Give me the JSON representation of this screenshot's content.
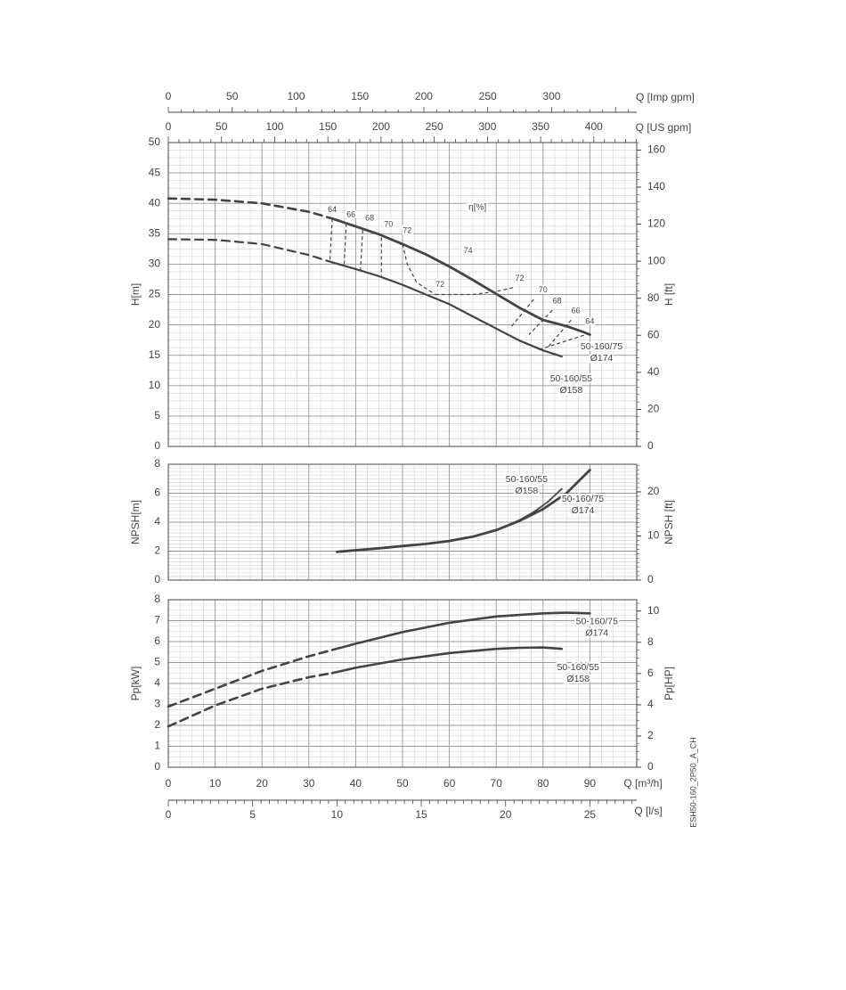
{
  "colors": {
    "curve": "#444444",
    "grid_major": "#999999",
    "grid_minor": "#d2d2d2",
    "text": "#444444"
  },
  "doc_code": "ESH50-160_2P50_A_CH",
  "chart_data": [
    {
      "type": "line",
      "id": "head",
      "ylabel": "H[m]",
      "ylabel_right": "H [ft]",
      "ylim": [
        0,
        50
      ],
      "y_ticks": [
        "0",
        "5",
        "10",
        "15",
        "20",
        "25",
        "30",
        "35",
        "40",
        "45",
        "50"
      ],
      "y2lim": [
        0,
        164.04
      ],
      "y2_ticks": [
        "0",
        "20",
        "40",
        "60",
        "80",
        "100",
        "120",
        "140",
        "160"
      ],
      "xlim": [
        0,
        100
      ],
      "top_axis_imp": {
        "label": "Q [Imp gpm]",
        "ticks": [
          "0",
          "50",
          "100",
          "150",
          "200",
          "250",
          "300"
        ]
      },
      "top_axis_us": {
        "label": "Q [US gpm]",
        "ticks": [
          "0",
          "50",
          "100",
          "150",
          "200",
          "250",
          "300",
          "350",
          "400"
        ]
      },
      "eta_label": "η[%]",
      "series": [
        {
          "name": "50-160/75\nØ174",
          "dashed": [
            [
              0,
              40.8
            ],
            [
              10,
              40.6
            ],
            [
              20,
              40
            ],
            [
              30,
              38.6
            ],
            [
              35,
              37.5
            ]
          ],
          "solid": [
            [
              35,
              37.5
            ],
            [
              40,
              36.2
            ],
            [
              45,
              34.9
            ],
            [
              50,
              33.3
            ],
            [
              55,
              31.6
            ],
            [
              60,
              29.6
            ],
            [
              65,
              27.4
            ],
            [
              70,
              25.1
            ],
            [
              75,
              22.8
            ],
            [
              80,
              20.8
            ],
            [
              85,
              19.8
            ],
            [
              88,
              19
            ],
            [
              90,
              18.4
            ]
          ]
        },
        {
          "name": "50-160/55\nØ158",
          "dashed": [
            [
              0,
              34.1
            ],
            [
              10,
              34
            ],
            [
              20,
              33.3
            ],
            [
              30,
              31.5
            ],
            [
              35,
              30.3
            ]
          ],
          "solid": [
            [
              35,
              30.3
            ],
            [
              40,
              29.2
            ],
            [
              45,
              28
            ],
            [
              50,
              26.6
            ],
            [
              55,
              25
            ],
            [
              60,
              23.4
            ],
            [
              65,
              21.4
            ],
            [
              70,
              19.4
            ],
            [
              75,
              17.4
            ],
            [
              80,
              15.8
            ],
            [
              84,
              14.8
            ]
          ]
        }
      ],
      "efficiency": [
        {
          "label": "64",
          "left": [
            [
              35,
              37.5
            ],
            [
              34.5,
              30.7
            ]
          ],
          "right": [
            [
              90,
              18.6
            ],
            [
              79,
              15.9
            ]
          ]
        },
        {
          "label": "66",
          "left": [
            [
              38,
              36.7
            ],
            [
              37.5,
              29.6
            ]
          ],
          "right": [
            [
              86,
              20.8
            ],
            [
              81,
              16.3
            ]
          ]
        },
        {
          "label": "68",
          "left": [
            [
              41.5,
              35.6
            ],
            [
              41,
              28.8
            ]
          ],
          "right": [
            [
              82,
              22.4
            ],
            [
              77,
              18.4
            ]
          ]
        },
        {
          "label": "70",
          "left": [
            [
              45.5,
              34.4
            ],
            [
              45.5,
              28.1
            ]
          ],
          "right": [
            [
              78,
              24.2
            ],
            [
              73,
              19.5
            ]
          ]
        },
        {
          "label": "72",
          "left": [
            [
              50,
              33.3
            ],
            [
              51,
              30
            ],
            [
              53,
              27
            ],
            [
              57,
              25
            ]
          ],
          "right": [
            [
              57,
              25
            ],
            [
              65,
              25
            ],
            [
              70,
              25.5
            ],
            [
              74,
              26.2
            ]
          ]
        },
        {
          "label": "74"
        }
      ]
    },
    {
      "type": "line",
      "id": "npsh",
      "ylabel": "NPSH[m]",
      "ylabel_right": "NPSH [ft]",
      "ylim": [
        0,
        8
      ],
      "y_ticks": [
        "0",
        "2",
        "4",
        "6",
        "8"
      ],
      "y2lim": [
        0,
        26.25
      ],
      "y2_ticks": [
        "0",
        "10",
        "20"
      ],
      "xlim": [
        0,
        100
      ],
      "series": [
        {
          "name": "50-160/75\nØ174",
          "points": [
            [
              36,
              1.95
            ],
            [
              45,
              2.2
            ],
            [
              50,
              2.35
            ],
            [
              55,
              2.5
            ],
            [
              60,
              2.7
            ],
            [
              65,
              3
            ],
            [
              70,
              3.45
            ],
            [
              75,
              4.1
            ],
            [
              80,
              4.9
            ],
            [
              85,
              6
            ],
            [
              90,
              7.6
            ]
          ]
        },
        {
          "name": "50-160/55\nØ158",
          "points": [
            [
              36,
              1.95
            ],
            [
              45,
              2.2
            ],
            [
              50,
              2.35
            ],
            [
              55,
              2.5
            ],
            [
              60,
              2.7
            ],
            [
              65,
              3
            ],
            [
              70,
              3.45
            ],
            [
              75,
              4.15
            ],
            [
              78,
              4.7
            ],
            [
              81,
              5.4
            ],
            [
              84,
              6.3
            ]
          ]
        }
      ]
    },
    {
      "type": "line",
      "id": "power",
      "ylabel": "Pp[kW]",
      "ylabel_right": "Pp[HP]",
      "ylim": [
        0,
        8
      ],
      "y_ticks": [
        "0",
        "1",
        "2",
        "3",
        "4",
        "5",
        "6",
        "7",
        "8"
      ],
      "y2lim": [
        0,
        10.728
      ],
      "y2_ticks": [
        "0",
        "2",
        "4",
        "6",
        "8",
        "10"
      ],
      "xlabel": "Q [m³/h]",
      "x_ticks": [
        "0",
        "10",
        "20",
        "30",
        "40",
        "50",
        "60",
        "70",
        "80",
        "90"
      ],
      "xlim": [
        0,
        100
      ],
      "bottom_axis_ls": {
        "label": "Q [l/s]",
        "ticks": [
          "0",
          "5",
          "10",
          "15",
          "20",
          "25"
        ]
      },
      "series": [
        {
          "name": "50-160/75\nØ174",
          "dashed": [
            [
              0,
              2.9
            ],
            [
              10,
              3.75
            ],
            [
              20,
              4.6
            ],
            [
              30,
              5.3
            ],
            [
              35,
              5.6
            ]
          ],
          "solid": [
            [
              35,
              5.6
            ],
            [
              40,
              5.9
            ],
            [
              50,
              6.45
            ],
            [
              60,
              6.9
            ],
            [
              70,
              7.2
            ],
            [
              80,
              7.35
            ],
            [
              85,
              7.38
            ],
            [
              90,
              7.35
            ]
          ]
        },
        {
          "name": "50-160/55\nØ158",
          "dashed": [
            [
              0,
              1.95
            ],
            [
              10,
              2.95
            ],
            [
              20,
              3.75
            ],
            [
              30,
              4.3
            ],
            [
              35,
              4.5
            ]
          ],
          "solid": [
            [
              35,
              4.5
            ],
            [
              40,
              4.75
            ],
            [
              50,
              5.15
            ],
            [
              60,
              5.45
            ],
            [
              70,
              5.65
            ],
            [
              75,
              5.7
            ],
            [
              80,
              5.72
            ],
            [
              84,
              5.65
            ]
          ]
        }
      ]
    }
  ]
}
